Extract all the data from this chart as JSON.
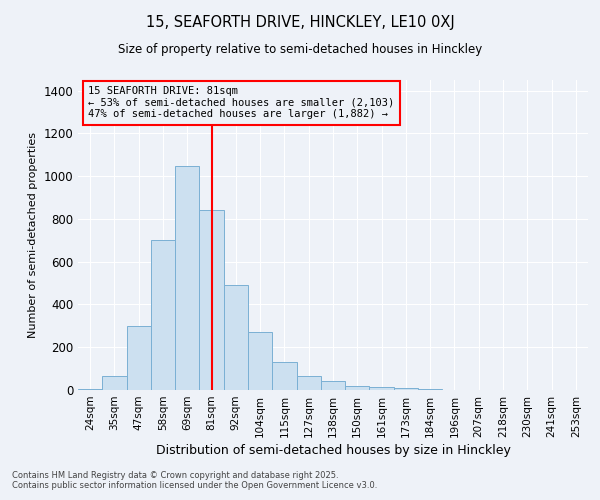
{
  "title_line1": "15, SEAFORTH DRIVE, HINCKLEY, LE10 0XJ",
  "title_line2": "Size of property relative to semi-detached houses in Hinckley",
  "xlabel": "Distribution of semi-detached houses by size in Hinckley",
  "ylabel": "Number of semi-detached properties",
  "categories": [
    "24sqm",
    "35sqm",
    "47sqm",
    "58sqm",
    "69sqm",
    "81sqm",
    "92sqm",
    "104sqm",
    "115sqm",
    "127sqm",
    "138sqm",
    "150sqm",
    "161sqm",
    "173sqm",
    "184sqm",
    "196sqm",
    "207sqm",
    "218sqm",
    "230sqm",
    "241sqm",
    "253sqm"
  ],
  "values": [
    5,
    65,
    300,
    700,
    1050,
    840,
    490,
    270,
    130,
    65,
    40,
    20,
    15,
    10,
    5,
    2,
    1,
    0,
    0,
    0,
    0
  ],
  "bar_color": "#cce0f0",
  "bar_edgecolor": "#7ab0d4",
  "redline_index": 5,
  "annotation_title": "15 SEAFORTH DRIVE: 81sqm",
  "annotation_line2": "← 53% of semi-detached houses are smaller (2,103)",
  "annotation_line3": "47% of semi-detached houses are larger (1,882) →",
  "vline_color": "red",
  "ylim": [
    0,
    1450
  ],
  "yticks": [
    0,
    200,
    400,
    600,
    800,
    1000,
    1200,
    1400
  ],
  "footer_line1": "Contains HM Land Registry data © Crown copyright and database right 2025.",
  "footer_line2": "Contains public sector information licensed under the Open Government Licence v3.0.",
  "bg_color": "#eef2f8"
}
